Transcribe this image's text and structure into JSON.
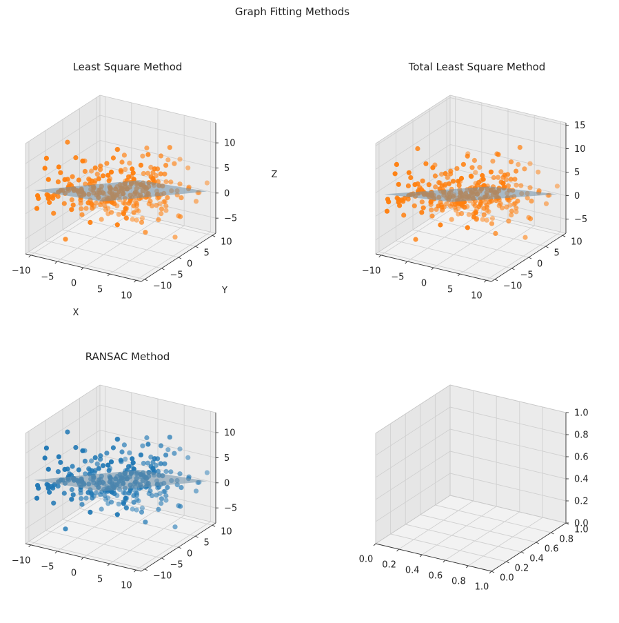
{
  "figure": {
    "suptitle": "Graph Fitting Methods"
  },
  "colors": {
    "orange": "#ff7f0e",
    "blue": "#1f77b4",
    "plane": "#6f8fa8",
    "pane": "#f2f2f2",
    "grid": "#d0d0d0"
  },
  "chart_data": [
    {
      "type": "scatter3d",
      "title": "Least Square Method",
      "xlabel": "X",
      "ylabel": "Y",
      "zlabel": "Z",
      "xlim": [
        -11,
        11
      ],
      "ylim": [
        -11,
        11
      ],
      "zlim": [
        -8,
        14
      ],
      "xticks": [
        -10,
        -5,
        0,
        5,
        10
      ],
      "yticks": [
        -10,
        -5,
        0,
        5,
        10
      ],
      "zticks": [
        -5,
        0,
        5,
        10
      ],
      "xtick_labels": [
        "−10",
        "−5",
        "0",
        "5",
        "10"
      ],
      "ytick_labels": [
        "−10",
        "−5",
        "0",
        "5",
        "10"
      ],
      "ztick_labels": [
        "−5",
        "0",
        "5",
        "10"
      ],
      "points_color": "orange",
      "plane": {
        "a": 0.35,
        "b": -0.55,
        "c": 2.5
      },
      "scatter_noise": 2.0,
      "scatter_outlier_fraction": 0.15,
      "point_count": 300
    },
    {
      "type": "scatter3d",
      "title": "Total Least Square Method",
      "xlabel": "",
      "ylabel": "",
      "zlabel": "",
      "xlim": [
        -11,
        11
      ],
      "ylim": [
        -11,
        11
      ],
      "zlim": [
        -8,
        15.5
      ],
      "xticks": [
        -10,
        -5,
        0,
        5,
        10
      ],
      "yticks": [
        -10,
        -5,
        0,
        5,
        10
      ],
      "zticks": [
        -5,
        0,
        5,
        10,
        15
      ],
      "xtick_labels": [
        "−10",
        "−5",
        "0",
        "5",
        "10"
      ],
      "ytick_labels": [
        "−10",
        "−5",
        "0",
        "5",
        "10"
      ],
      "ztick_labels": [
        "−5",
        "0",
        "5",
        "10",
        "15"
      ],
      "points_color": "orange",
      "plane": {
        "a": 0.35,
        "b": -0.55,
        "c": 2.5
      },
      "scatter_noise": 2.0,
      "scatter_outlier_fraction": 0.15,
      "point_count": 300
    },
    {
      "type": "scatter3d",
      "title": "RANSAC Method",
      "xlabel": "",
      "ylabel": "",
      "zlabel": "",
      "xlim": [
        -11,
        11
      ],
      "ylim": [
        -11,
        11
      ],
      "zlim": [
        -8,
        14
      ],
      "xticks": [
        -10,
        -5,
        0,
        5,
        10
      ],
      "yticks": [
        -10,
        -5,
        0,
        5,
        10
      ],
      "zticks": [
        -5,
        0,
        5,
        10
      ],
      "xtick_labels": [
        "−10",
        "−5",
        "0",
        "5",
        "10"
      ],
      "ytick_labels": [
        "−10",
        "−5",
        "0",
        "5",
        "10"
      ],
      "ztick_labels": [
        "−5",
        "0",
        "5",
        "10"
      ],
      "points_color": "blue",
      "plane": {
        "a": 0.35,
        "b": -0.55,
        "c": 2.5
      },
      "scatter_noise": 2.0,
      "scatter_outlier_fraction": 0.15,
      "point_count": 300
    },
    {
      "type": "empty3d",
      "title": "",
      "xlabel": "",
      "ylabel": "",
      "zlabel": "",
      "xlim": [
        0,
        1
      ],
      "ylim": [
        0,
        1
      ],
      "zlim": [
        0,
        1
      ],
      "xticks": [
        0,
        0.2,
        0.4,
        0.6,
        0.8,
        1.0
      ],
      "yticks": [
        0,
        0.2,
        0.4,
        0.6,
        0.8,
        1.0
      ],
      "zticks": [
        0,
        0.2,
        0.4,
        0.6,
        0.8,
        1.0
      ],
      "xtick_labels": [
        "0.0",
        "0.2",
        "0.4",
        "0.6",
        "0.8",
        "1.0"
      ],
      "ytick_labels": [
        "0.0",
        "0.2",
        "0.4",
        "0.6",
        "0.8",
        "1.0"
      ],
      "ztick_labels": [
        "0.0",
        "0.2",
        "0.4",
        "0.6",
        "0.8",
        "1.0"
      ],
      "points_color": "",
      "plane": null
    }
  ]
}
